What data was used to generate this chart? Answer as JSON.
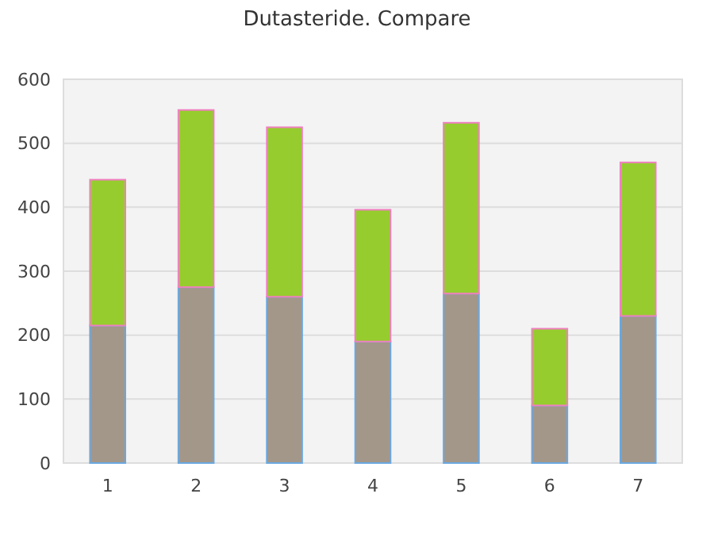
{
  "chart_data": {
    "type": "bar",
    "title": "Dutasteride. Compare",
    "stacked": true,
    "categories": [
      "1",
      "2",
      "3",
      "4",
      "5",
      "6",
      "7"
    ],
    "series": [
      {
        "color": "#a3978a",
        "values": [
          215,
          275,
          260,
          190,
          265,
          90,
          230
        ]
      },
      {
        "color": "#96cc2e",
        "values": [
          228,
          277,
          265,
          206,
          267,
          120,
          240
        ]
      }
    ],
    "ylim": [
      0,
      600
    ],
    "yticks": [
      0,
      100,
      200,
      300,
      400,
      500,
      600
    ],
    "grid": "y"
  }
}
